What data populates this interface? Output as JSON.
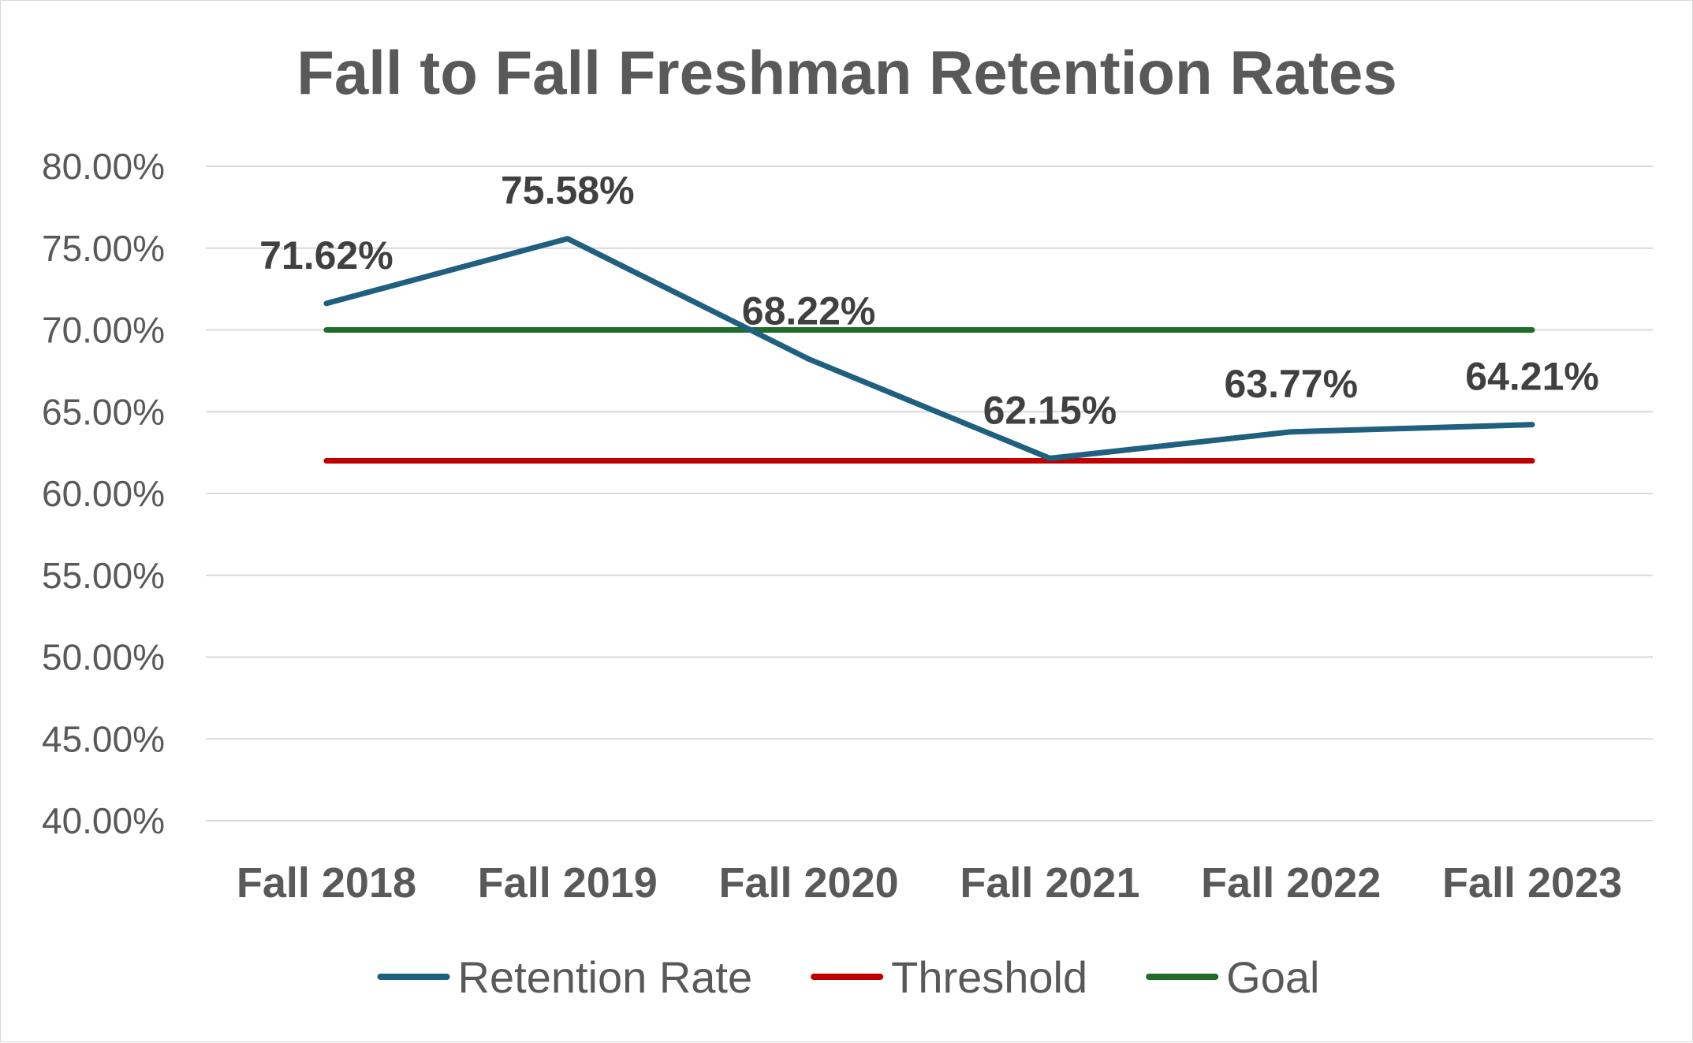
{
  "chart_data": {
    "type": "line",
    "title": "Fall to Fall Freshman Retention Rates",
    "xlabel": "",
    "ylabel": "",
    "categories": [
      "Fall 2018",
      "Fall 2019",
      "Fall 2020",
      "Fall 2021",
      "Fall 2022",
      "Fall 2023"
    ],
    "ylim": [
      40,
      80
    ],
    "y_ticks": [
      40,
      45,
      50,
      55,
      60,
      65,
      70,
      75,
      80
    ],
    "y_tick_labels": [
      "40.00%",
      "45.00%",
      "50.00%",
      "55.00%",
      "60.00%",
      "65.00%",
      "70.00%",
      "75.00%",
      "80.00%"
    ],
    "grid": true,
    "legend_position": "bottom",
    "series": [
      {
        "name": "Retention Rate",
        "color": "#1f5f7f",
        "values": [
          71.62,
          75.58,
          68.22,
          62.15,
          63.77,
          64.21
        ],
        "data_labels": [
          "71.62%",
          "75.58%",
          "68.22%",
          "62.15%",
          "63.77%",
          "64.21%"
        ]
      },
      {
        "name": "Threshold",
        "color": "#c00000",
        "values": [
          62,
          62,
          62,
          62,
          62,
          62
        ]
      },
      {
        "name": "Goal",
        "color": "#1e6b2a",
        "values": [
          70,
          70,
          70,
          70,
          70,
          70
        ]
      }
    ]
  }
}
